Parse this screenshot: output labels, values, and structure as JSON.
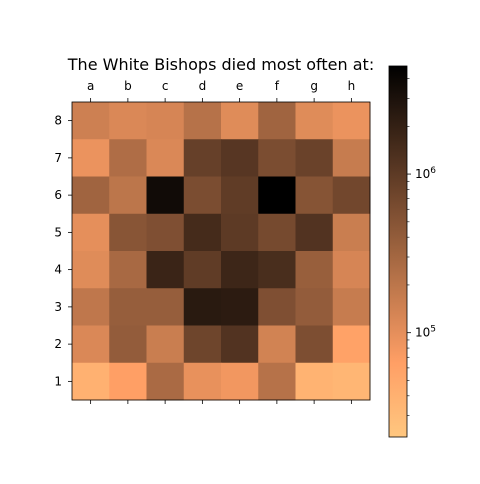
{
  "chart_data": {
    "type": "heatmap",
    "title": "The White Bishops died most often at:",
    "files": [
      "a",
      "b",
      "c",
      "d",
      "e",
      "f",
      "g",
      "h"
    ],
    "ranks": [
      "8",
      "7",
      "6",
      "5",
      "4",
      "3",
      "2",
      "1"
    ],
    "values": [
      [
        150000,
        120000,
        130000,
        220000,
        110000,
        320000,
        110000,
        90000
      ],
      [
        90000,
        250000,
        120000,
        850000,
        1100000,
        600000,
        800000,
        170000
      ],
      [
        320000,
        200000,
        3600000,
        600000,
        950000,
        4800000,
        500000,
        700000
      ],
      [
        100000,
        480000,
        560000,
        1500000,
        1000000,
        650000,
        1200000,
        160000
      ],
      [
        110000,
        280000,
        1800000,
        950000,
        1700000,
        1400000,
        370000,
        130000
      ],
      [
        190000,
        380000,
        380000,
        2400000,
        2300000,
        560000,
        400000,
        170000
      ],
      [
        120000,
        400000,
        160000,
        750000,
        1200000,
        140000,
        580000,
        60000
      ],
      [
        40000,
        65000,
        270000,
        95000,
        80000,
        220000,
        38000,
        35000
      ]
    ],
    "colormap": "copper_r",
    "scale": "log",
    "vmin": 22000,
    "vmax": 4800000,
    "colorbar": {
      "tick_labels": [
        {
          "value": 100000,
          "label": "10^5"
        },
        {
          "value": 1000000,
          "label": "10^6"
        }
      ],
      "minor_ticks": [
        30000,
        40000,
        50000,
        60000,
        70000,
        80000,
        90000,
        200000,
        300000,
        400000,
        500000,
        600000,
        700000,
        800000,
        900000,
        2000000,
        3000000,
        4000000
      ]
    },
    "grid": false
  }
}
